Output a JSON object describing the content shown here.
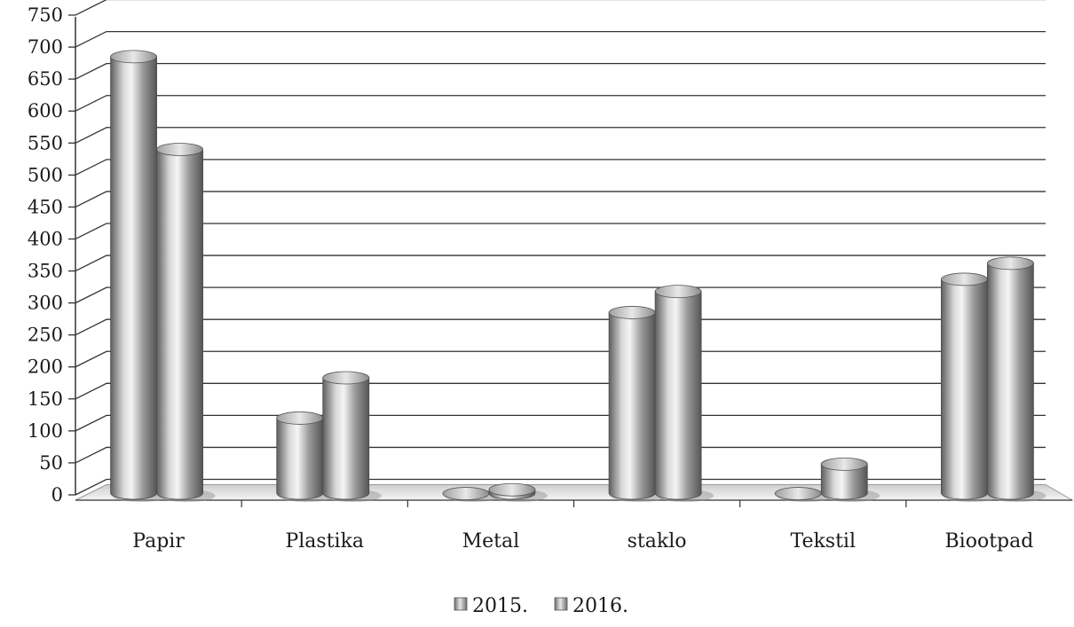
{
  "chart_data": {
    "type": "bar",
    "style": "3d-cylinder",
    "categories": [
      "Papir",
      "Plastika",
      "Metal",
      "staklo",
      "Tekstil",
      "Biootpad"
    ],
    "series": [
      {
        "name": "2015.",
        "values": [
          685,
          120,
          2,
          285,
          2,
          337
        ]
      },
      {
        "name": "2016.",
        "values": [
          540,
          183,
          8,
          318,
          48,
          362
        ]
      }
    ],
    "ylim": [
      0,
      750
    ],
    "yticks": [
      0,
      50,
      100,
      150,
      200,
      250,
      300,
      350,
      400,
      450,
      500,
      550,
      600,
      650,
      700,
      750
    ],
    "grid": true,
    "legend_position": "bottom-center",
    "colors": {
      "bar_light": "#f2f2f2",
      "bar_mid": "#b5b5b5",
      "bar_dark": "#6a6a6a",
      "grid": "#333333",
      "floor": "#e6e6e6"
    }
  }
}
